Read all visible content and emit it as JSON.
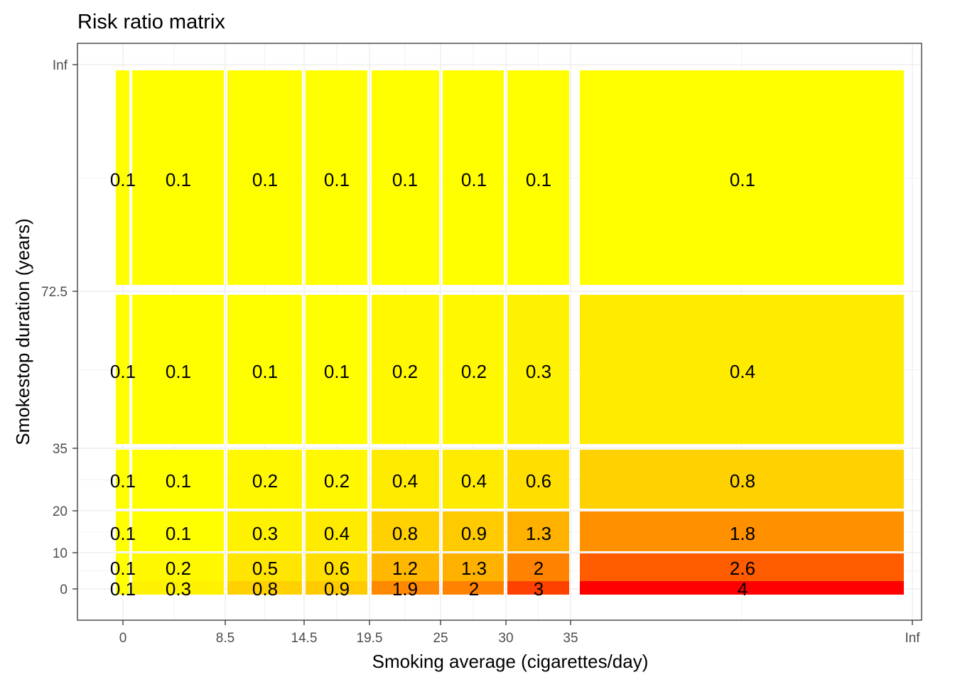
{
  "chart_data": {
    "type": "heatmap",
    "title": "Risk ratio matrix",
    "xlabel": "Smoking average (cigarettes/day)",
    "ylabel": "Smokestop duration (years)",
    "x_tick_labels": [
      "0",
      "8.5",
      "14.5",
      "19.5",
      "25",
      "30",
      "35",
      "Inf"
    ],
    "y_tick_labels": [
      "0",
      "10",
      "20",
      "35",
      "72.5",
      "Inf"
    ],
    "x_bins": [
      "0",
      "0–8.5",
      "8.5–14.5",
      "14.5–19.5",
      "19.5–25",
      "25–30",
      "30–35",
      "35–Inf"
    ],
    "y_bins": [
      "0",
      "0–10",
      "10–20",
      "20–35",
      "35–72.5",
      "72.5–Inf"
    ],
    "values": [
      [
        0.1,
        0.3,
        0.8,
        0.9,
        1.9,
        2,
        3,
        4
      ],
      [
        0.1,
        0.2,
        0.5,
        0.6,
        1.2,
        1.3,
        2,
        2.6
      ],
      [
        0.1,
        0.1,
        0.3,
        0.4,
        0.8,
        0.9,
        1.3,
        1.8
      ],
      [
        0.1,
        0.1,
        0.2,
        0.2,
        0.4,
        0.4,
        0.6,
        0.8
      ],
      [
        0.1,
        0.1,
        0.1,
        0.1,
        0.2,
        0.2,
        0.3,
        0.4
      ],
      [
        0.1,
        0.1,
        0.1,
        0.1,
        0.1,
        0.1,
        0.1,
        0.1
      ]
    ],
    "labels": [
      [
        "0.1",
        "0.3",
        "0.8",
        "0.9",
        "1.9",
        "2",
        "3",
        "4"
      ],
      [
        "0.1",
        "0.2",
        "0.5",
        "0.6",
        "1.2",
        "1.3",
        "2",
        "2.6"
      ],
      [
        "0.1",
        "0.1",
        "0.3",
        "0.4",
        "0.8",
        "0.9",
        "1.3",
        "1.8"
      ],
      [
        "0.1",
        "0.1",
        "0.2",
        "0.2",
        "0.4",
        "0.4",
        "0.6",
        "0.8"
      ],
      [
        "0.1",
        "0.1",
        "0.1",
        "0.1",
        "0.2",
        "0.2",
        "0.3",
        "0.4"
      ],
      [
        "0.1",
        "0.1",
        "0.1",
        "0.1",
        "0.1",
        "0.1",
        "0.1",
        "0.1"
      ]
    ],
    "color_scale": {
      "low": "#FFFF00",
      "high": "#FF0000",
      "min": 0.1,
      "max": 4
    },
    "grid": true,
    "legend": "none"
  }
}
